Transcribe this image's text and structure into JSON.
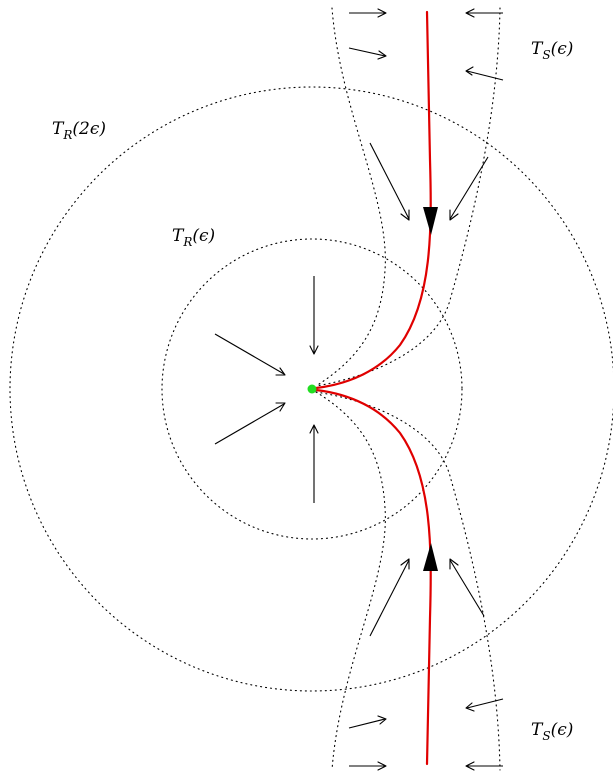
{
  "labels": {
    "tr_2eps": {
      "base": "T",
      "sub": "R",
      "arg": "(2ϵ)"
    },
    "tr_eps": {
      "base": "T",
      "sub": "R",
      "arg": "(ϵ)"
    },
    "ts_eps_top": {
      "base": "T",
      "sub": "S",
      "arg": "(ϵ)"
    },
    "ts_eps_bottom": {
      "base": "T",
      "sub": "S",
      "arg": "(ϵ)"
    }
  },
  "colors": {
    "trajectory": "#e00000",
    "equilibrium_point": "#22dd22",
    "tubes": "#000000",
    "arrows": "#000000"
  }
}
